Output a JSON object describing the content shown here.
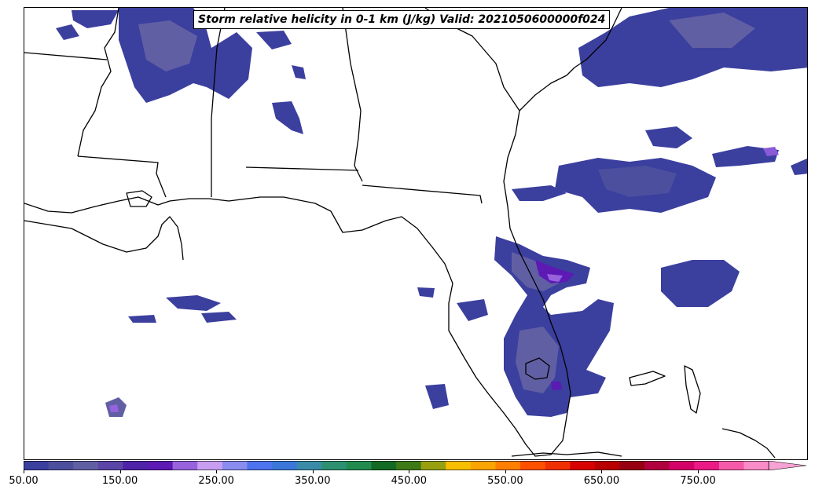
{
  "title": "Storm relative helicity in 0-1 km (J/kg) Valid: 2021050600000f024",
  "colorbar": {
    "min": 50,
    "max": 825,
    "step": 25,
    "extend": "max",
    "ticks": [
      "50.00",
      "150.00",
      "250.00",
      "350.00",
      "450.00",
      "550.00",
      "650.00",
      "750.00"
    ],
    "tick_values": [
      50,
      150,
      250,
      350,
      450,
      550,
      650,
      750
    ],
    "colors": [
      "#3b3f9e",
      "#4c4f9d",
      "#615fa4",
      "#5b45a6",
      "#4f23a8",
      "#5c19b4",
      "#9762dc",
      "#c89ef2",
      "#8a8cf0",
      "#4d73ee",
      "#3a77d9",
      "#3a8ba8",
      "#2d9070",
      "#238a4f",
      "#136a24",
      "#3e7a16",
      "#98a010",
      "#f8be00",
      "#fca500",
      "#ff7f00",
      "#ff5000",
      "#f03000",
      "#d80000",
      "#b80000",
      "#960010",
      "#b00040",
      "#d40068",
      "#ea1a86",
      "#f55aa8",
      "#fa8cc8",
      "#f7a2d4"
    ]
  },
  "map": {
    "region": "Southeastern United States and Gulf of Mexico",
    "field": "0-1 km storm relative helicity",
    "units": "J/kg"
  }
}
